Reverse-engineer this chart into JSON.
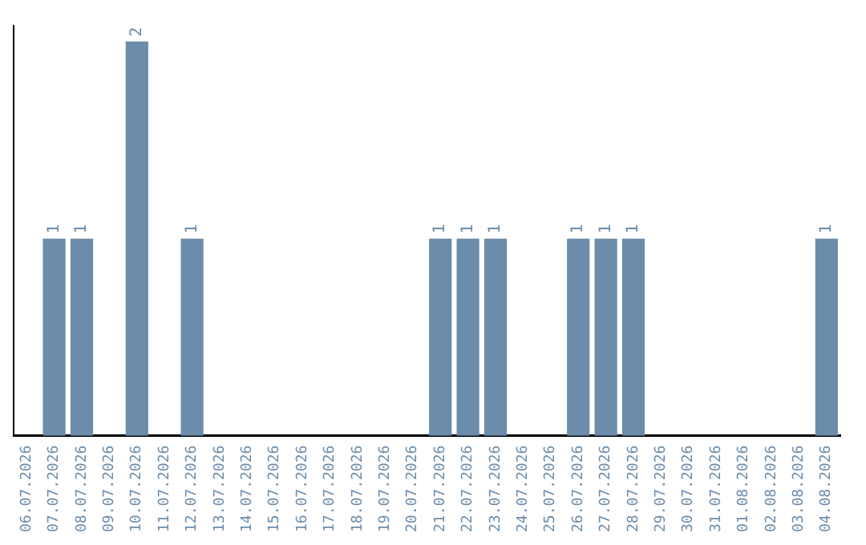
{
  "chart_data": {
    "type": "bar",
    "categories": [
      "06.07.2026",
      "07.07.2026",
      "08.07.2026",
      "09.07.2026",
      "10.07.2026",
      "11.07.2026",
      "12.07.2026",
      "13.07.2026",
      "14.07.2026",
      "15.07.2026",
      "16.07.2026",
      "17.07.2026",
      "18.07.2026",
      "19.07.2026",
      "20.07.2026",
      "21.07.2026",
      "22.07.2026",
      "23.07.2026",
      "24.07.2026",
      "25.07.2026",
      "26.07.2026",
      "27.07.2026",
      "28.07.2026",
      "29.07.2026",
      "30.07.2026",
      "31.07.2026",
      "01.08.2026",
      "02.08.2026",
      "03.08.2026",
      "04.08.2026"
    ],
    "values": [
      0,
      1,
      1,
      0,
      2,
      0,
      1,
      0,
      0,
      0,
      0,
      0,
      0,
      0,
      0,
      1,
      1,
      1,
      0,
      0,
      1,
      1,
      1,
      0,
      0,
      0,
      0,
      0,
      0,
      1
    ],
    "value_labels": [
      null,
      "1",
      "1",
      null,
      "2",
      null,
      "1",
      null,
      null,
      null,
      null,
      null,
      null,
      null,
      null,
      "1",
      "1",
      "1",
      null,
      null,
      "1",
      "1",
      "1",
      null,
      null,
      null,
      null,
      null,
      null,
      "1"
    ],
    "color": "#6b8caa",
    "grid": false,
    "legend": false
  }
}
